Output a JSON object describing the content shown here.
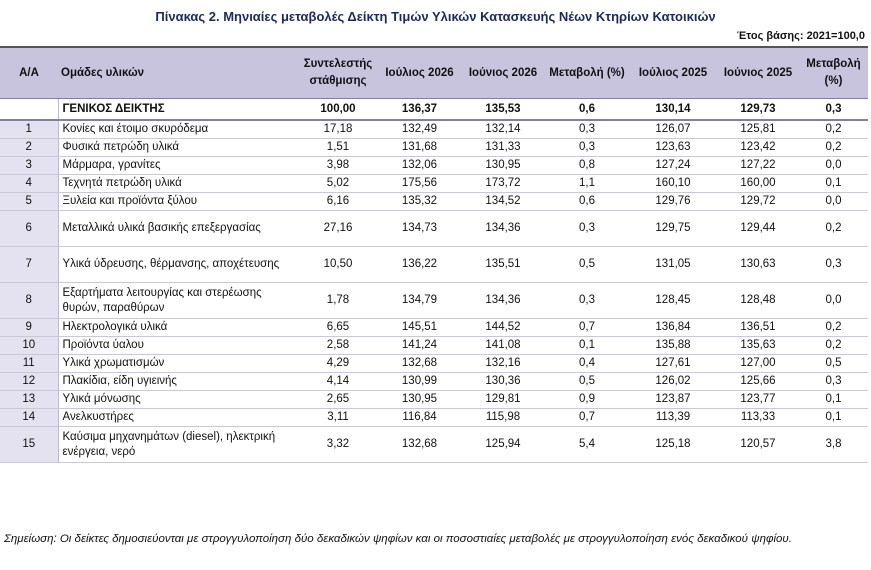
{
  "title": "Πίνακας 2. Μηνιαίες μεταβολές Δείκτη Τιμών Υλικών Κατασκευής Νέων Κτηρίων Κατοικιών",
  "base_note": "Έτος  βάσης: 2021=100,0",
  "headers": {
    "aa": "Α/Α",
    "group": "Ομάδες υλικών",
    "weight": "Συντελεστής στάθμισης",
    "jul2026": "Ιούλιος 2026",
    "jun2026": "Ιούνιος 2026",
    "chg2026": "Μεταβολή (%)",
    "jul2025": "Ιούλιος 2025",
    "jun2025": "Ιούνιος 2025",
    "chg2025": "Μεταβολή (%)"
  },
  "total": {
    "label": "ΓΕΝΙΚΟΣ ΔΕΙΚΤΗΣ",
    "weight": "100,00",
    "jul2026": "136,37",
    "jun2026": "135,53",
    "chg2026": "0,6",
    "jul2025": "130,14",
    "jun2025": "129,73",
    "chg2025": "0,3"
  },
  "rows": [
    {
      "aa": "1",
      "label": "Κονίες και έτοιμο σκυρόδεμα",
      "weight": "17,18",
      "jul2026": "132,49",
      "jun2026": "132,14",
      "chg2026": "0,3",
      "jul2025": "126,07",
      "jun2025": "125,81",
      "chg2025": "0,2"
    },
    {
      "aa": "2",
      "label": "Φυσικά πετρώδη υλικά",
      "weight": "1,51",
      "jul2026": "131,68",
      "jun2026": "131,33",
      "chg2026": "0,3",
      "jul2025": "123,63",
      "jun2025": "123,42",
      "chg2025": "0,2"
    },
    {
      "aa": "3",
      "label": "Μάρμαρα, γρανίτες",
      "weight": "3,98",
      "jul2026": "132,06",
      "jun2026": "130,95",
      "chg2026": "0,8",
      "jul2025": "127,24",
      "jun2025": "127,22",
      "chg2025": "0,0"
    },
    {
      "aa": "4",
      "label": "Τεχνητά πετρώδη υλικά",
      "weight": "5,02",
      "jul2026": "175,56",
      "jun2026": "173,72",
      "chg2026": "1,1",
      "jul2025": "160,10",
      "jun2025": "160,00",
      "chg2025": "0,1"
    },
    {
      "aa": "5",
      "label": "Ξυλεία και προϊόντα ξύλου",
      "weight": "6,16",
      "jul2026": "135,32",
      "jun2026": "134,52",
      "chg2026": "0,6",
      "jul2025": "129,76",
      "jun2025": "129,72",
      "chg2025": "0,0"
    },
    {
      "aa": "6",
      "label": "Μεταλλικά υλικά βασικής επεξεργασίας",
      "weight": "27,16",
      "jul2026": "134,73",
      "jun2026": "134,36",
      "chg2026": "0,3",
      "jul2025": "129,75",
      "jun2025": "129,44",
      "chg2025": "0,2"
    },
    {
      "aa": "7",
      "label": "Υλικά ύδρευσης, θέρμανσης, αποχέτευσης",
      "weight": "10,50",
      "jul2026": "136,22",
      "jun2026": "135,51",
      "chg2026": "0,5",
      "jul2025": "131,05",
      "jun2025": "130,63",
      "chg2025": "0,3"
    },
    {
      "aa": "8",
      "label": "Εξαρτήματα λειτουργίας και στερέωσης θυρών, παραθύρων",
      "weight": "1,78",
      "jul2026": "134,79",
      "jun2026": "134,36",
      "chg2026": "0,3",
      "jul2025": "128,45",
      "jun2025": "128,48",
      "chg2025": "0,0"
    },
    {
      "aa": "9",
      "label": "Ηλεκτρολογικά υλικά",
      "weight": "6,65",
      "jul2026": "145,51",
      "jun2026": "144,52",
      "chg2026": "0,7",
      "jul2025": "136,84",
      "jun2025": "136,51",
      "chg2025": "0,2"
    },
    {
      "aa": "10",
      "label": "Προϊόντα ύαλου",
      "weight": "2,58",
      "jul2026": "141,24",
      "jun2026": "141,08",
      "chg2026": "0,1",
      "jul2025": "135,88",
      "jun2025": "135,63",
      "chg2025": "0,2"
    },
    {
      "aa": "11",
      "label": "Υλικά χρωματισμών",
      "weight": "4,29",
      "jul2026": "132,68",
      "jun2026": "132,16",
      "chg2026": "0,4",
      "jul2025": "127,61",
      "jun2025": "127,00",
      "chg2025": "0,5"
    },
    {
      "aa": "12",
      "label": "Πλακίδια, είδη υγιεινής",
      "weight": "4,14",
      "jul2026": "130,99",
      "jun2026": "130,36",
      "chg2026": "0,5",
      "jul2025": "126,02",
      "jun2025": "125,66",
      "chg2025": "0,3"
    },
    {
      "aa": "13",
      "label": "Υλικά μόνωσης",
      "weight": "2,65",
      "jul2026": "130,95",
      "jun2026": "129,81",
      "chg2026": "0,9",
      "jul2025": "123,87",
      "jun2025": "123,77",
      "chg2025": "0,1"
    },
    {
      "aa": "14",
      "label": "Ανελκυστήρες",
      "weight": "3,11",
      "jul2026": "116,84",
      "jun2026": "115,98",
      "chg2026": "0,7",
      "jul2025": "113,39",
      "jun2025": "113,33",
      "chg2025": "0,1"
    },
    {
      "aa": "15",
      "label": "Καύσιμα μηχανημάτων (diesel), ηλεκτρική ενέργεια, νερό",
      "weight": "3,32",
      "jul2026": "132,68",
      "jun2026": "125,94",
      "chg2026": "5,4",
      "jul2025": "125,18",
      "jun2025": "120,57",
      "chg2025": "3,8"
    }
  ],
  "footnote": "Σημείωση: Οι δείκτες δημοσιεύονται με στρογγυλοποίηση δύο δεκαδικών ψηφίων και οι ποσοστιαίες μεταβολές με στρογγυλοποίηση ενός δεκαδικού ψηφίου."
}
